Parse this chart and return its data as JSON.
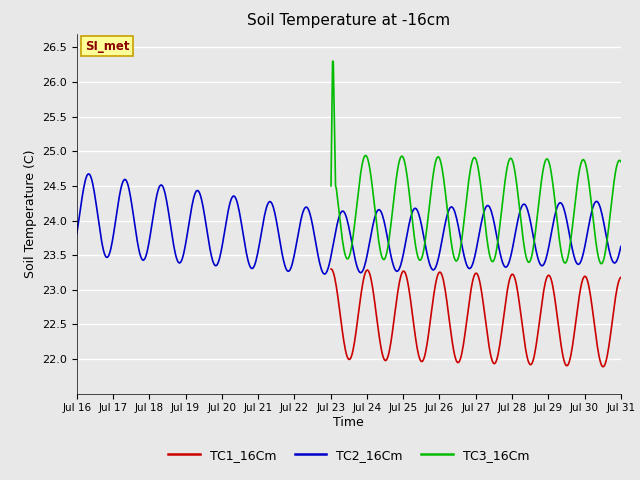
{
  "title": "Soil Temperature at -16cm",
  "xlabel": "Time",
  "ylabel": "Soil Temperature (C)",
  "ylim": [
    21.5,
    26.7
  ],
  "xlim": [
    0,
    15
  ],
  "bg_color": "#e8e8e8",
  "plot_bg_color": "#e8e8e8",
  "grid_color": "#ffffff",
  "annotation_text": "SI_met",
  "annotation_bg": "#ffff99",
  "annotation_border": "#c8a000",
  "annotation_text_color": "#8b0000",
  "xtick_labels": [
    "Jul 16",
    "Jul 17",
    "Jul 18",
    "Jul 19",
    "Jul 20",
    "Jul 21",
    "Jul 22",
    "Jul 23",
    "Jul 24",
    "Jul 25",
    "Jul 26",
    "Jul 27",
    "Jul 28",
    "Jul 29",
    "Jul 30",
    "Jul 31"
  ],
  "tc1_color": "#cc0000",
  "tc2_color": "#0000cc",
  "tc3_color": "#00bb00",
  "linewidth": 1.2,
  "legend_labels": [
    "TC1_16Cm",
    "TC2_16Cm",
    "TC3_16Cm"
  ]
}
